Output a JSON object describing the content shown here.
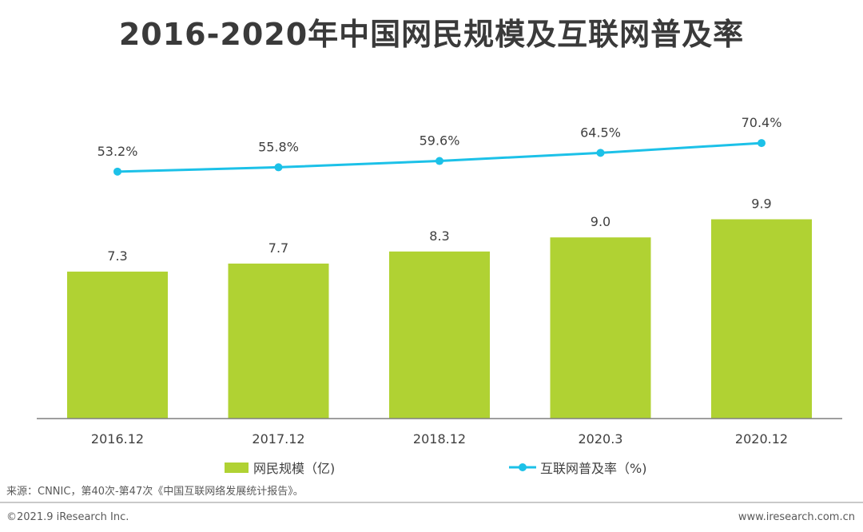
{
  "title": "2016-2020年中国网民规模及互联网普及率",
  "chart_data": {
    "type": "bar+line",
    "categories": [
      "2016.12",
      "2017.12",
      "2018.12",
      "2020.3",
      "2020.12"
    ],
    "series": [
      {
        "name": "网民规模（亿)",
        "type": "bar",
        "values": [
          7.3,
          7.7,
          8.3,
          9.0,
          9.9
        ],
        "labels": [
          "7.3",
          "7.7",
          "8.3",
          "9.0",
          "9.9"
        ],
        "color": "#b0d233"
      },
      {
        "name": "互联网普及率（%)",
        "type": "line",
        "values": [
          53.2,
          55.8,
          59.6,
          64.5,
          70.4
        ],
        "labels": [
          "53.2%",
          "55.8%",
          "59.6%",
          "64.5%",
          "70.4%"
        ],
        "color": "#1cc1e8"
      }
    ],
    "bar_axis_range": [
      0,
      10
    ],
    "line_axis_range": [
      0,
      105
    ],
    "legend_position": "bottom"
  },
  "source": "来源：CNNIC，第40次-第47次《中国互联网络发展统计报告》。",
  "footer": {
    "copyright": "©2021.9 iResearch Inc.",
    "website": "www.iresearch.com.cn"
  }
}
